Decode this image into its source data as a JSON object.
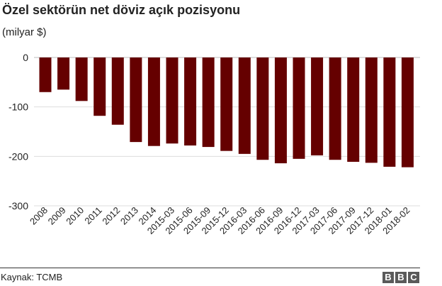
{
  "title": "Özel sektörün net döviz açık pozisyonu",
  "subtitle": "(milyar $)",
  "source": "Kaynak: TCMB",
  "logo_letters": [
    "B",
    "B",
    "C"
  ],
  "colors": {
    "bar": "#650000",
    "grid": "#dddddd",
    "axis_text": "#222222"
  },
  "chart_data": {
    "type": "bar",
    "title": "Özel sektörün net döviz açık pozisyonu",
    "subtitle": "(milyar $)",
    "xlabel": "",
    "ylabel": "",
    "ylim": [
      -300,
      0
    ],
    "yticks": [
      0,
      -100,
      -200,
      -300
    ],
    "grid": true,
    "categories": [
      "2008",
      "2009",
      "2010",
      "2011",
      "2012",
      "2013",
      "2014",
      "2015-03",
      "2015-06",
      "2015-09",
      "2015-12",
      "2016-03",
      "2016-06",
      "2016-09",
      "2016-12",
      "2017-03",
      "2017-06",
      "2017-09",
      "2017-12",
      "2018-01",
      "2018-02"
    ],
    "values": [
      -70,
      -65,
      -88,
      -118,
      -136,
      -171,
      -179,
      -174,
      -178,
      -181,
      -189,
      -195,
      -207,
      -214,
      -205,
      -198,
      -207,
      -211,
      -213,
      -221,
      -222
    ]
  }
}
